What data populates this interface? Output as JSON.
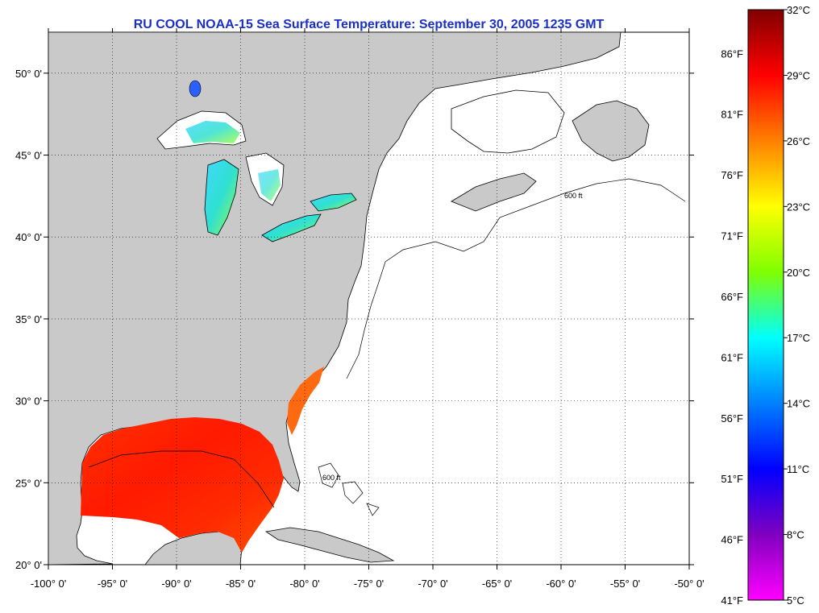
{
  "title": "RU COOL  NOAA-15  Sea Surface Temperature:  September 30, 2005 1235 GMT",
  "map": {
    "lon_range": [
      -100,
      -50
    ],
    "lat_range": [
      20,
      52.5
    ],
    "lon_ticks": [
      {
        "value": -100,
        "label": "-100° 0'"
      },
      {
        "value": -95,
        "label": "-95° 0'"
      },
      {
        "value": -90,
        "label": "-90° 0'"
      },
      {
        "value": -85,
        "label": "-85° 0'"
      },
      {
        "value": -80,
        "label": "-80° 0'"
      },
      {
        "value": -75,
        "label": "-75° 0'"
      },
      {
        "value": -70,
        "label": "-70° 0'"
      },
      {
        "value": -65,
        "label": "-65° 0'"
      },
      {
        "value": -60,
        "label": "-60° 0'"
      },
      {
        "value": -55,
        "label": "-55° 0'"
      },
      {
        "value": -50,
        "label": "-50° 0'"
      }
    ],
    "lat_ticks": [
      {
        "value": 20,
        "label": "20° 0'"
      },
      {
        "value": 25,
        "label": "25° 0'"
      },
      {
        "value": 30,
        "label": "30° 0'"
      },
      {
        "value": 35,
        "label": "35° 0'"
      },
      {
        "value": 40,
        "label": "40° 0'"
      },
      {
        "value": 45,
        "label": "45° 0'"
      },
      {
        "value": 50,
        "label": "50° 0'"
      }
    ],
    "land_color": "#c9c9c9",
    "ocean_color": "#ffffff",
    "grid": "dotted",
    "isobath_label": "600 ft"
  },
  "colorbar": {
    "min_c": 5,
    "max_c": 32,
    "celsius_labels": [
      "32°C",
      "29°C",
      "26°C",
      "23°C",
      "20°C",
      "17°C",
      "14°C",
      "11°C",
      "8°C",
      "5°C"
    ],
    "fahrenheit_labels": [
      "86°F",
      "81°F",
      "76°F",
      "71°F",
      "66°F",
      "61°F",
      "56°F",
      "51°F",
      "46°F",
      "41°F"
    ],
    "stops": [
      "#800000",
      "#ff0000",
      "#ff8000",
      "#ffff00",
      "#80ff00",
      "#00ffff",
      "#0080ff",
      "#0000ff",
      "#8000c0",
      "#ff00ff"
    ]
  }
}
